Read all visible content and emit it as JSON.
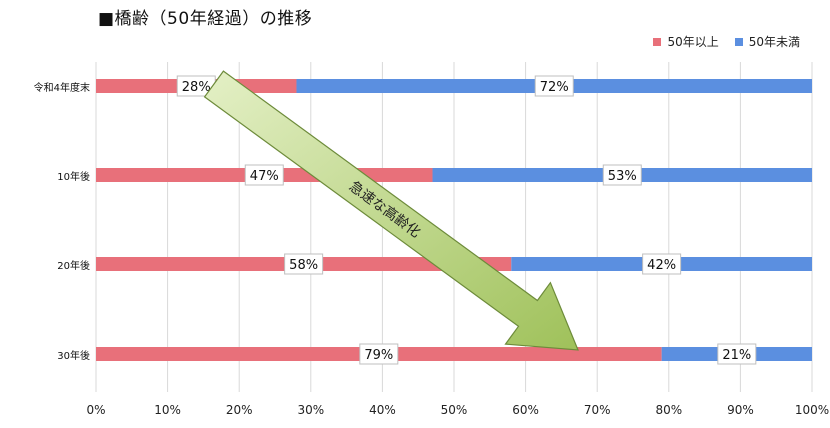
{
  "title": "■橋齢（50年経過）の推移",
  "colors": {
    "series1": "#e8707a",
    "series2": "#5b8fe0",
    "grid": "#d9d9d9",
    "arrow_fill_start": "#e4f0c6",
    "arrow_fill_end": "#9fc15a",
    "arrow_stroke": "#6d8b3a"
  },
  "annotation": "急速な高齢化",
  "chart_data": {
    "type": "bar",
    "orientation": "horizontal",
    "stacked": true,
    "categories": [
      "令和4年度末",
      "10年後",
      "20年後",
      "30年後"
    ],
    "series": [
      {
        "name": "50年以上",
        "values": [
          28,
          47,
          58,
          79
        ]
      },
      {
        "name": "50年未満",
        "values": [
          72,
          53,
          42,
          21
        ]
      }
    ],
    "data_labels": [
      [
        "28%",
        "72%"
      ],
      [
        "47%",
        "53%"
      ],
      [
        "58%",
        "42%"
      ],
      [
        "79%",
        "21%"
      ]
    ],
    "x_ticks": [
      "0%",
      "10%",
      "20%",
      "30%",
      "40%",
      "50%",
      "60%",
      "70%",
      "80%",
      "90%",
      "100%"
    ],
    "xlim": [
      0,
      100
    ],
    "grid": true,
    "legend": "top-right"
  }
}
